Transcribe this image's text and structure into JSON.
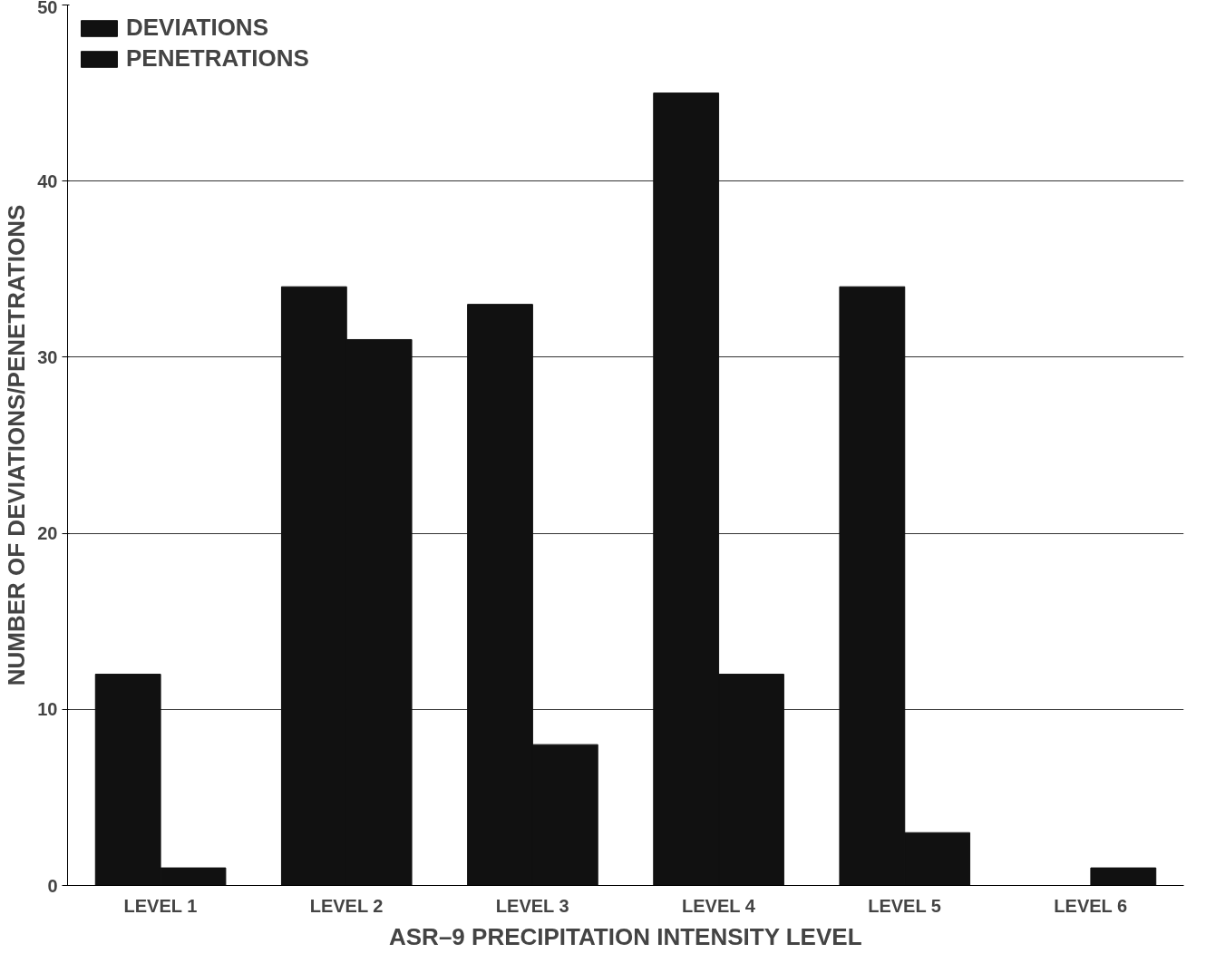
{
  "chart_data": {
    "type": "bar",
    "xlabel": "ASR–9 PRECIPITATION INTENSITY LEVEL",
    "ylabel": "NUMBER OF DEVIATIONS/PENETRATIONS",
    "categories": [
      "LEVEL 1",
      "LEVEL 2",
      "LEVEL 3",
      "LEVEL 4",
      "LEVEL 5",
      "LEVEL 6"
    ],
    "series": [
      {
        "name": "DEVIATIONS",
        "color": "#111111",
        "values": [
          12,
          34,
          33,
          45,
          34,
          0
        ]
      },
      {
        "name": "PENETRATIONS",
        "color": "#111111",
        "values": [
          1,
          31,
          8,
          12,
          3,
          1
        ]
      }
    ],
    "ylim": [
      0,
      50
    ],
    "yticks": [
      0,
      10,
      20,
      30,
      40,
      50
    ],
    "grid": "y",
    "legend": "top left"
  }
}
